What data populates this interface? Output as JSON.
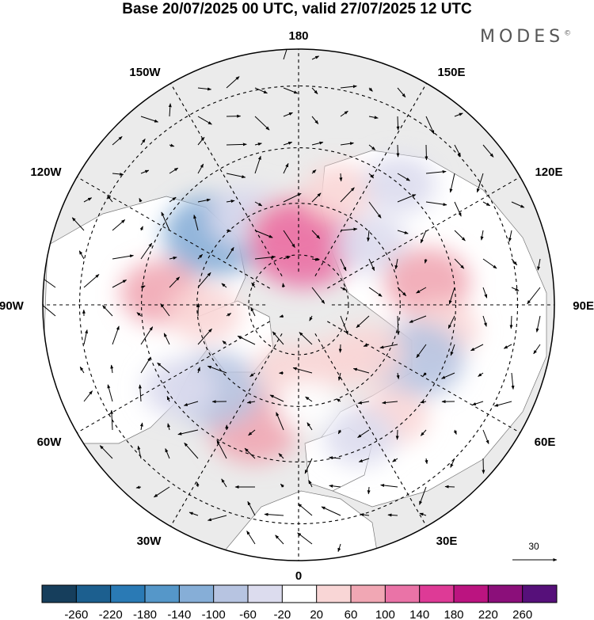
{
  "title": "Base 20/07/2025 00 UTC, valid 27/07/2025 12 UTC",
  "brand": {
    "name": "MODES",
    "mark": "©"
  },
  "longitude_labels": {
    "top": "180",
    "bottom": "0",
    "left": "90W",
    "right": "90E",
    "upper_left_1": "150W",
    "upper_left_2": "120W",
    "upper_right_1": "150E",
    "upper_right_2": "120E",
    "lower_left_1": "60W",
    "lower_left_2": "30W",
    "lower_right_1": "60E",
    "lower_right_2": "30E"
  },
  "reference_vector": {
    "label": "30"
  },
  "colorbar": {
    "labels": [
      "-260",
      "-220",
      "-180",
      "-140",
      "-100",
      "-60",
      "-20",
      "20",
      "60",
      "100",
      "140",
      "180",
      "220",
      "260"
    ],
    "colors": [
      "#163e5c",
      "#1c5f8f",
      "#2a7ab5",
      "#5597c9",
      "#86aed7",
      "#b7c4e1",
      "#dcdcee",
      "#ffffff",
      "#f9d6d6",
      "#f1a7b4",
      "#ea73a7",
      "#de3a96",
      "#bb1480",
      "#8b0f7a",
      "#56107a"
    ]
  },
  "anomalies": [
    {
      "lon": -130,
      "lat": 58,
      "value": -110
    },
    {
      "lon": -150,
      "lat": 60,
      "value": -50
    },
    {
      "lon": -175,
      "lat": 68,
      "value": 70
    },
    {
      "lon": 175,
      "lat": 72,
      "value": 120
    },
    {
      "lon": 160,
      "lat": 55,
      "value": 40
    },
    {
      "lon": 130,
      "lat": 62,
      "value": -40
    },
    {
      "lon": 140,
      "lat": 45,
      "value": -40
    },
    {
      "lon": 100,
      "lat": 52,
      "value": 70
    },
    {
      "lon": 80,
      "lat": 48,
      "value": 40
    },
    {
      "lon": 65,
      "lat": 52,
      "value": -90
    },
    {
      "lon": 40,
      "lat": 48,
      "value": 40
    },
    {
      "lon": 25,
      "lat": 48,
      "value": -40
    },
    {
      "lon": 55,
      "lat": 65,
      "value": 40
    },
    {
      "lon": 30,
      "lat": 70,
      "value": 20
    },
    {
      "lon": -20,
      "lat": 52,
      "value": 80
    },
    {
      "lon": -45,
      "lat": 55,
      "value": -90
    },
    {
      "lon": -55,
      "lat": 48,
      "value": -40
    },
    {
      "lon": -95,
      "lat": 50,
      "value": 60
    },
    {
      "lon": -85,
      "lat": 62,
      "value": 40
    },
    {
      "lon": -10,
      "lat": 70,
      "value": 30
    },
    {
      "lon": 5,
      "lat": 60,
      "value": -20
    }
  ]
}
